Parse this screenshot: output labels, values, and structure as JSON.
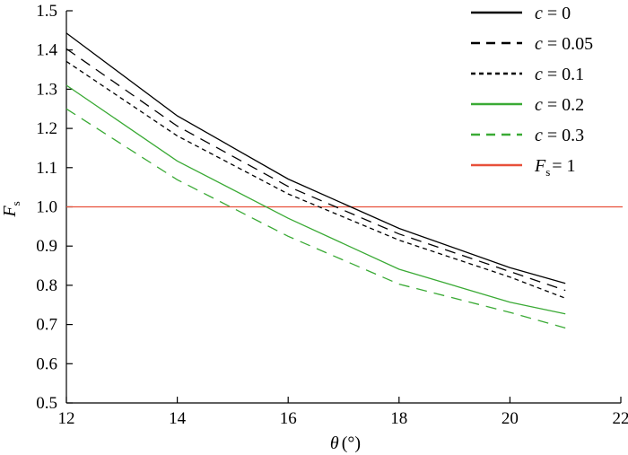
{
  "chart_data": {
    "type": "line",
    "xlabel_symbol": "θ",
    "xlabel_unit": "(°)",
    "ylabel_symbol": "F",
    "ylabel_sub": "s",
    "xlim": [
      12,
      22
    ],
    "ylim": [
      0.5,
      1.5
    ],
    "xticks": [
      12,
      14,
      16,
      18,
      20,
      22
    ],
    "yticks": [
      0.5,
      0.6,
      0.7,
      0.8,
      0.9,
      1.0,
      1.1,
      1.2,
      1.3,
      1.4,
      1.5
    ],
    "ytick_labels": [
      "0.5",
      "0.6",
      "0.7",
      "0.8",
      "0.9",
      "1.0",
      "1.1",
      "1.2",
      "1.3",
      "1.4",
      "1.5"
    ],
    "x": [
      12,
      14,
      16,
      18,
      20,
      21
    ],
    "series": [
      {
        "name_var": "c",
        "name_eq": " = 0",
        "color": "#000000",
        "dash": "solid",
        "values": [
          1.443,
          1.232,
          1.071,
          0.945,
          0.845,
          0.805
        ]
      },
      {
        "name_var": "c",
        "name_eq": " = 0.05",
        "color": "#000000",
        "dash": "long",
        "values": [
          1.403,
          1.206,
          1.052,
          0.931,
          0.835,
          0.787
        ]
      },
      {
        "name_var": "c",
        "name_eq": " = 0.1",
        "color": "#000000",
        "dash": "short",
        "values": [
          1.371,
          1.181,
          1.033,
          0.915,
          0.821,
          0.767
        ]
      },
      {
        "name_var": "c",
        "name_eq": " = 0.2",
        "color": "#3aaa35",
        "dash": "solid",
        "values": [
          1.31,
          1.117,
          0.971,
          0.841,
          0.757,
          0.727
        ]
      },
      {
        "name_var": "c",
        "name_eq": " = 0.3",
        "color": "#3aaa35",
        "dash": "long",
        "values": [
          1.25,
          1.069,
          0.925,
          0.803,
          0.731,
          0.691
        ]
      }
    ],
    "reference_line": {
      "name_var": "F",
      "name_sub": "s",
      "name_eq": "= 1",
      "y": 1.0,
      "color": "#e8503a"
    },
    "legend_position": "top-right",
    "grid": false
  }
}
